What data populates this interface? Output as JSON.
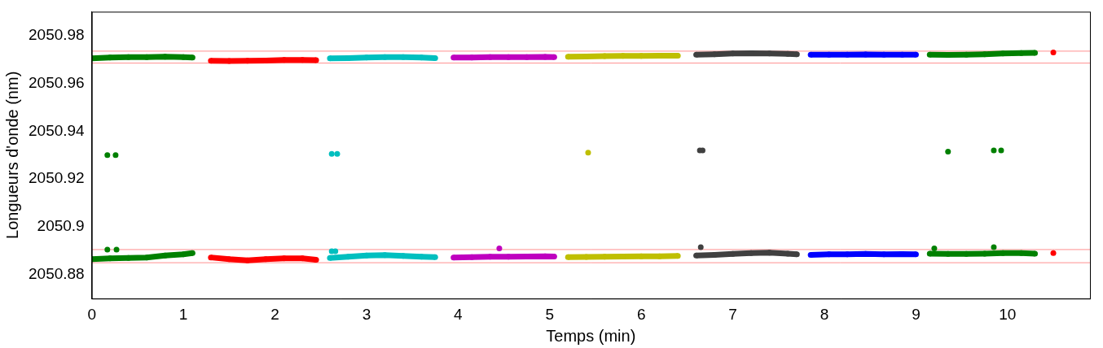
{
  "chart_data": {
    "type": "scatter",
    "x_label": "Temps (min)",
    "y_label": "Longueurs d'onde (nm)",
    "xlim": [
      0,
      10.9
    ],
    "ylim": [
      2050.87,
      2050.99
    ],
    "xticks": [
      0,
      1,
      2,
      3,
      4,
      5,
      6,
      7,
      8,
      9,
      10
    ],
    "yticks": [
      2050.88,
      2050.9,
      2050.92,
      2050.94,
      2050.96,
      2050.98
    ],
    "grid": false,
    "reference_lines": {
      "color": "#ff9090",
      "values": [
        2050.9735,
        2050.9685,
        2050.8905,
        2050.885
      ]
    },
    "series": [
      {
        "color": "#008000",
        "marker": "circle",
        "line_style": "solid",
        "x": [
          0,
          0.2,
          0.4,
          0.6,
          0.8,
          1.0,
          1.1
        ],
        "values": [
          2050.9705,
          2050.9708,
          2050.971,
          2050.971,
          2050.9712,
          2050.971,
          2050.9708
        ]
      },
      {
        "color": "#008000",
        "marker": "circle",
        "line_style": "solid",
        "x": [
          0,
          0.2,
          0.4,
          0.6,
          0.8,
          1.0,
          1.1
        ],
        "values": [
          2050.8865,
          2050.8868,
          2050.887,
          2050.8872,
          2050.888,
          2050.8885,
          2050.889
        ]
      },
      {
        "color": "#008000",
        "marker": "circle",
        "line_style": "none",
        "x": [
          0.17,
          0.26,
          0.17,
          0.27
        ],
        "values": [
          2050.93,
          2050.93,
          2050.8905,
          2050.8905
        ]
      },
      {
        "color": "#ff0000",
        "marker": "circle",
        "line_style": "solid",
        "x": [
          1.3,
          1.5,
          1.7,
          1.9,
          2.1,
          2.3,
          2.45
        ],
        "values": [
          2050.9695,
          2050.9694,
          2050.9695,
          2050.9696,
          2050.9698,
          2050.9698,
          2050.9697
        ]
      },
      {
        "color": "#ff0000",
        "marker": "circle",
        "line_style": "solid",
        "x": [
          1.3,
          1.5,
          1.7,
          1.9,
          2.1,
          2.3,
          2.45
        ],
        "values": [
          2050.8872,
          2050.8865,
          2050.886,
          2050.8865,
          2050.8868,
          2050.8868,
          2050.8862
        ]
      },
      {
        "color": "#00bfbf",
        "marker": "circle",
        "line_style": "solid",
        "x": [
          2.6,
          2.8,
          3.0,
          3.2,
          3.4,
          3.6,
          3.75
        ],
        "values": [
          2050.9705,
          2050.9706,
          2050.9708,
          2050.971,
          2050.971,
          2050.9708,
          2050.9706
        ]
      },
      {
        "color": "#00bfbf",
        "marker": "circle",
        "line_style": "solid",
        "x": [
          2.6,
          2.8,
          3.0,
          3.2,
          3.4,
          3.6,
          3.75
        ],
        "values": [
          2050.887,
          2050.8875,
          2050.888,
          2050.8882,
          2050.8878,
          2050.8875,
          2050.8873
        ]
      },
      {
        "color": "#00bfbf",
        "marker": "circle",
        "line_style": "none",
        "x": [
          2.62,
          2.68,
          2.62,
          2.66
        ],
        "values": [
          2050.9305,
          2050.9305,
          2050.8898,
          2050.8898
        ]
      },
      {
        "color": "#bf00bf",
        "marker": "circle",
        "line_style": "solid",
        "x": [
          3.95,
          4.15,
          4.35,
          4.55,
          4.75,
          4.95,
          5.05
        ],
        "values": [
          2050.9708,
          2050.9708,
          2050.971,
          2050.971,
          2050.971,
          2050.9711,
          2050.971
        ]
      },
      {
        "color": "#bf00bf",
        "marker": "circle",
        "line_style": "solid",
        "x": [
          3.95,
          4.15,
          4.35,
          4.55,
          4.75,
          4.95,
          5.05
        ],
        "values": [
          2050.8872,
          2050.8873,
          2050.8875,
          2050.8875,
          2050.8876,
          2050.8877,
          2050.8876
        ]
      },
      {
        "color": "#bf00bf",
        "marker": "circle",
        "line_style": "none",
        "x": [
          4.45
        ],
        "values": [
          2050.891
        ]
      },
      {
        "color": "#bfbf00",
        "marker": "circle",
        "line_style": "solid",
        "x": [
          5.2,
          5.4,
          5.6,
          5.8,
          6.0,
          6.2,
          6.4
        ],
        "values": [
          2050.9712,
          2050.9713,
          2050.9714,
          2050.9715,
          2050.9715,
          2050.9716,
          2050.9716
        ]
      },
      {
        "color": "#bfbf00",
        "marker": "circle",
        "line_style": "solid",
        "x": [
          5.2,
          5.4,
          5.6,
          5.8,
          6.0,
          6.2,
          6.4
        ],
        "values": [
          2050.8873,
          2050.8874,
          2050.8875,
          2050.8876,
          2050.8877,
          2050.8877,
          2050.8878
        ]
      },
      {
        "color": "#bfbf00",
        "marker": "circle",
        "line_style": "none",
        "x": [
          5.42
        ],
        "values": [
          2050.931
        ]
      },
      {
        "color": "#404040",
        "marker": "circle",
        "line_style": "solid",
        "x": [
          6.6,
          6.8,
          7.0,
          7.2,
          7.4,
          7.6,
          7.7
        ],
        "values": [
          2050.972,
          2050.9722,
          2050.9725,
          2050.9726,
          2050.9725,
          2050.9724,
          2050.9722
        ]
      },
      {
        "color": "#404040",
        "marker": "circle",
        "line_style": "solid",
        "x": [
          6.6,
          6.8,
          7.0,
          7.2,
          7.4,
          7.6,
          7.7
        ],
        "values": [
          2050.888,
          2050.8883,
          2050.8887,
          2050.889,
          2050.8892,
          2050.8888,
          2050.8885
        ]
      },
      {
        "color": "#404040",
        "marker": "circle",
        "line_style": "none",
        "x": [
          6.64,
          6.67,
          6.65
        ],
        "values": [
          2050.932,
          2050.932,
          2050.8915
        ]
      },
      {
        "color": "#0000ff",
        "marker": "circle",
        "line_style": "solid",
        "x": [
          7.85,
          8.05,
          8.25,
          8.45,
          8.65,
          8.85,
          9.0
        ],
        "values": [
          2050.972,
          2050.972,
          2050.972,
          2050.9721,
          2050.972,
          2050.972,
          2050.972
        ]
      },
      {
        "color": "#0000ff",
        "marker": "circle",
        "line_style": "solid",
        "x": [
          7.85,
          8.05,
          8.25,
          8.45,
          8.65,
          8.85,
          9.0
        ],
        "values": [
          2050.8883,
          2050.8885,
          2050.8885,
          2050.8887,
          2050.8885,
          2050.8886,
          2050.8885
        ]
      },
      {
        "color": "#008000",
        "marker": "circle",
        "line_style": "solid",
        "x": [
          9.15,
          9.35,
          9.55,
          9.75,
          9.95,
          10.15,
          10.3
        ],
        "values": [
          2050.972,
          2050.9719,
          2050.972,
          2050.9722,
          2050.9725,
          2050.9727,
          2050.9728
        ]
      },
      {
        "color": "#008000",
        "marker": "circle",
        "line_style": "solid",
        "x": [
          9.15,
          9.35,
          9.55,
          9.75,
          9.95,
          10.15,
          10.3
        ],
        "values": [
          2050.8888,
          2050.8887,
          2050.8887,
          2050.8888,
          2050.889,
          2050.889,
          2050.8888
        ]
      },
      {
        "color": "#008000",
        "marker": "circle",
        "line_style": "none",
        "x": [
          9.35,
          9.85,
          9.93,
          9.85,
          9.2
        ],
        "values": [
          2050.9315,
          2050.932,
          2050.932,
          2050.8915,
          2050.891
        ]
      },
      {
        "color": "#ff0000",
        "marker": "circle",
        "line_style": "none",
        "x": [
          10.5,
          10.5
        ],
        "values": [
          2050.973,
          2050.889
        ]
      }
    ]
  }
}
